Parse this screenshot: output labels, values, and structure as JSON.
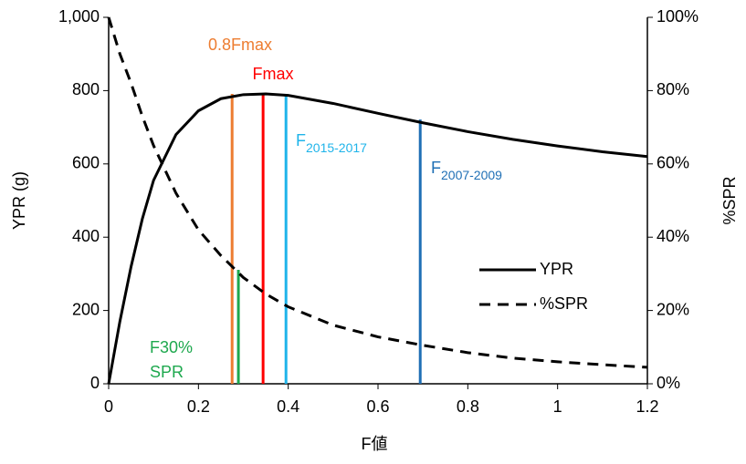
{
  "chart_data": {
    "type": "line",
    "x_label": "F値",
    "y_label": "YPR (g)",
    "y2_label": "%SPR",
    "x": [
      0,
      0.025,
      0.05,
      0.075,
      0.1,
      0.15,
      0.2,
      0.25,
      0.3,
      0.35,
      0.4,
      0.5,
      0.6,
      0.7,
      0.8,
      0.9,
      1.0,
      1.1,
      1.2
    ],
    "series": [
      {
        "name": "YPR",
        "color": "#000000",
        "line_style": "solid",
        "values": [
          0,
          170,
          320,
          450,
          555,
          680,
          745,
          778,
          789,
          791,
          787,
          765,
          738,
          712,
          688,
          667,
          649,
          633,
          620
        ]
      },
      {
        "name": "%SPR",
        "color": "#000000",
        "line_style": "dashed",
        "axis": "y2",
        "values": [
          100,
          90,
          82,
          73,
          65,
          52,
          42,
          35,
          29,
          24.5,
          21,
          16,
          12.8,
          10.5,
          8.5,
          7,
          6,
          5.2,
          4.5
        ]
      }
    ],
    "markers": [
      {
        "label": "0.8Fmax",
        "x": 0.275,
        "top": 791,
        "color": "#ED7D31"
      },
      {
        "label": "Fmax",
        "x": 0.344,
        "top": 791,
        "color": "#FF0000"
      },
      {
        "label": "F",
        "sub": "2015-2017",
        "x": 0.395,
        "top": 789,
        "color": "#1FB4EA"
      },
      {
        "label": "F",
        "sub": "2007-2009",
        "x": 0.694,
        "top": 721,
        "color": "#1F6FB5"
      },
      {
        "label": "F30%",
        "label2": "SPR",
        "x": 0.289,
        "top": 311,
        "color": "#1EA84E"
      }
    ],
    "xlim": [
      0,
      1.2
    ],
    "xticks": [
      0,
      0.2,
      0.4,
      0.6,
      0.8,
      1,
      1.2
    ],
    "ylim": [
      0,
      1000
    ],
    "yticks": [
      0,
      200,
      400,
      600,
      800,
      {
        "value": 1000,
        "label": "1,000"
      }
    ],
    "y2lim": [
      0,
      100
    ],
    "y2ticks": [
      {
        "value": 0,
        "label": "0%"
      },
      {
        "value": 20,
        "label": "20%"
      },
      {
        "value": 40,
        "label": "40%"
      },
      {
        "value": 60,
        "label": "60%"
      },
      {
        "value": 80,
        "label": "80%"
      },
      {
        "value": 100,
        "label": "100%"
      }
    ],
    "grid": false,
    "legend": "right"
  }
}
